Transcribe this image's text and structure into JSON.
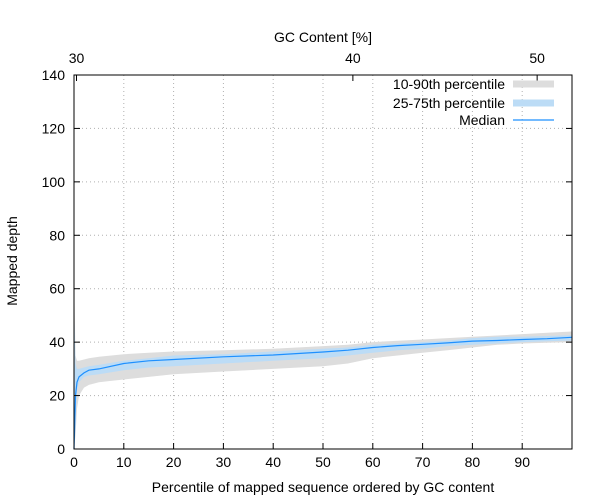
{
  "chart_data": {
    "type": "area",
    "xlabel": "Percentile of mapped sequence ordered by GC content",
    "ylabel": "Mapped depth",
    "x2label": "GC Content [%]",
    "xlim": [
      0,
      100
    ],
    "ylim": [
      0,
      140
    ],
    "x_ticks": [
      0,
      10,
      20,
      30,
      40,
      50,
      60,
      70,
      80,
      90
    ],
    "y_ticks": [
      0,
      20,
      40,
      60,
      80,
      100,
      120,
      140
    ],
    "x2_ticks": [
      {
        "label": "30",
        "at_percentile": 0.5
      },
      {
        "label": "40",
        "at_percentile": 56
      },
      {
        "label": "50",
        "at_percentile": 93
      }
    ],
    "grid": true,
    "legend_position": "top-right",
    "colors": {
      "band_10_90": "#dddddd",
      "band_25_75": "#bcdcf6",
      "median": "#1e90ff"
    },
    "x": [
      0,
      0.3,
      0.6,
      1,
      2,
      3,
      5,
      10,
      15,
      20,
      30,
      40,
      50,
      55,
      60,
      65,
      70,
      75,
      80,
      85,
      90,
      95,
      100
    ],
    "series": [
      {
        "name": "10-90th percentile",
        "lower": [
          0,
          5,
          15,
          20,
          23,
          24,
          25,
          26,
          27,
          28,
          29,
          30,
          31,
          32,
          34,
          35,
          36,
          37,
          38,
          39,
          39.5,
          39.8,
          40
        ],
        "upper": [
          65,
          35,
          33,
          33,
          33.5,
          34,
          34.5,
          35.5,
          36,
          36.5,
          37,
          37.5,
          38.5,
          39,
          40,
          40.5,
          41,
          41.5,
          42,
          42.5,
          43,
          43.5,
          44
        ]
      },
      {
        "name": "25-75th percentile",
        "lower": [
          0,
          12,
          22,
          25,
          27,
          27.5,
          28,
          29.5,
          30.5,
          31,
          32,
          33,
          34,
          35,
          36,
          37,
          37.5,
          38.5,
          39,
          39.5,
          40,
          40.3,
          40.6
        ],
        "upper": [
          55,
          32,
          30,
          30,
          30.5,
          31,
          31.5,
          33,
          34,
          35,
          35.5,
          36.5,
          37.5,
          38,
          39,
          39.5,
          40,
          40.5,
          41.5,
          42,
          42,
          42.3,
          42.6
        ]
      },
      {
        "name": "Median",
        "values": [
          0,
          20,
          25,
          27,
          28.5,
          29.5,
          30,
          32,
          33,
          33.5,
          34.5,
          35.2,
          36.3,
          37,
          38,
          38.7,
          39.2,
          39.7,
          40.4,
          40.6,
          41,
          41.3,
          41.8
        ]
      }
    ]
  }
}
